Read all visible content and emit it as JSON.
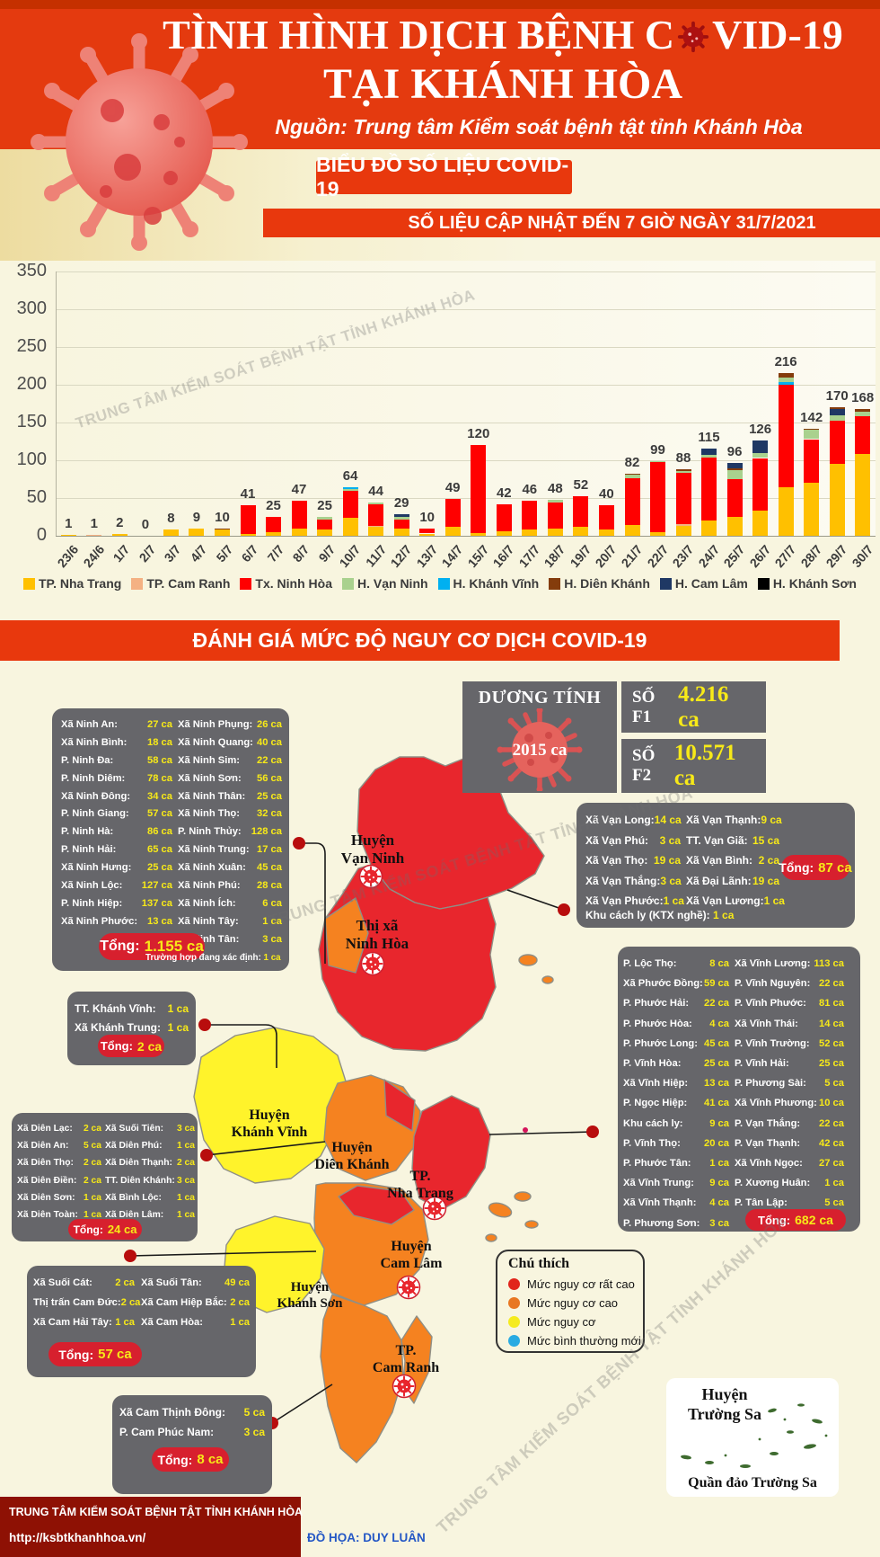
{
  "header": {
    "title_prefix": "TÌNH HÌNH DỊCH BỆNH C",
    "title_suffix": "VID-19",
    "title_line2": "TẠI KHÁNH HÒA",
    "source": "Nguồn: Trung tâm Kiểm soát bệnh tật tỉnh Khánh Hòa"
  },
  "watermark": "TRUNG TÂM KIỂM SOÁT BỆNH TẬT TỈNH KHÁNH HÒA",
  "labels": {
    "total": "Tổng:"
  },
  "chart_data": {
    "type": "bar",
    "stacked": true,
    "title": "BIỂU ĐỒ SỐ LIỆU COVID-19",
    "update_note": "SỐ LIỆU CẬP NHẬT ĐẾN 7 GIỜ NGÀY 31/7/2021",
    "ylim": [
      0,
      350
    ],
    "yticks": [
      0,
      50,
      100,
      150,
      200,
      250,
      300,
      350
    ],
    "legend": [
      {
        "key": "nt",
        "name": "TP. Nha Trang",
        "color": "#FFC000"
      },
      {
        "key": "cr",
        "name": "TP. Cam Ranh",
        "color": "#F4B183"
      },
      {
        "key": "nh",
        "name": "Tx. Ninh Hòa",
        "color": "#FF0000"
      },
      {
        "key": "vn",
        "name": "H. Vạn Ninh",
        "color": "#A9D18E"
      },
      {
        "key": "kv",
        "name": "H. Khánh Vĩnh",
        "color": "#00B0F0"
      },
      {
        "key": "dk",
        "name": "H. Diên Khánh",
        "color": "#843C0C"
      },
      {
        "key": "cl",
        "name": "H. Cam Lâm",
        "color": "#1F3864"
      },
      {
        "key": "ks",
        "name": "H. Khánh Sơn",
        "color": "#000000"
      }
    ],
    "bars": [
      {
        "date": "23/6",
        "total": 1,
        "segments": [
          [
            "nt",
            1
          ]
        ]
      },
      {
        "date": "24/6",
        "total": 1,
        "segments": [
          [
            "cr",
            1
          ]
        ]
      },
      {
        "date": "1/7",
        "total": 2,
        "segments": [
          [
            "nt",
            2
          ]
        ]
      },
      {
        "date": "2/7",
        "total": 0,
        "segments": []
      },
      {
        "date": "3/7",
        "total": 8,
        "segments": [
          [
            "nt",
            8
          ]
        ]
      },
      {
        "date": "4/7",
        "total": 9,
        "segments": [
          [
            "nt",
            9
          ]
        ]
      },
      {
        "date": "5/7",
        "total": 10,
        "segments": [
          [
            "nt",
            9
          ],
          [
            "dk",
            1
          ]
        ]
      },
      {
        "date": "6/7",
        "total": 41,
        "segments": [
          [
            "nt",
            2
          ],
          [
            "nh",
            39
          ]
        ]
      },
      {
        "date": "7/7",
        "total": 25,
        "segments": [
          [
            "nt",
            5
          ],
          [
            "nh",
            20
          ]
        ]
      },
      {
        "date": "8/7",
        "total": 47,
        "segments": [
          [
            "nt",
            9
          ],
          [
            "nh",
            38
          ]
        ]
      },
      {
        "date": "9/7",
        "total": 25,
        "segments": [
          [
            "nt",
            8
          ],
          [
            "nh",
            14
          ],
          [
            "vn",
            3
          ]
        ]
      },
      {
        "date": "10/7",
        "total": 64,
        "segments": [
          [
            "nt",
            24
          ],
          [
            "nh",
            36
          ],
          [
            "vn",
            2
          ],
          [
            "kv",
            2
          ]
        ]
      },
      {
        "date": "11/7",
        "total": 44,
        "segments": [
          [
            "nt",
            12
          ],
          [
            "cr",
            1
          ],
          [
            "nh",
            29
          ],
          [
            "vn",
            2
          ]
        ]
      },
      {
        "date": "12/7",
        "total": 29,
        "segments": [
          [
            "nt",
            9
          ],
          [
            "nh",
            13
          ],
          [
            "vn",
            3
          ],
          [
            "cl",
            4
          ]
        ]
      },
      {
        "date": "13/7",
        "total": 10,
        "segments": [
          [
            "nt",
            3
          ],
          [
            "nh",
            7
          ]
        ]
      },
      {
        "date": "14/7",
        "total": 49,
        "segments": [
          [
            "nt",
            12
          ],
          [
            "nh",
            37
          ]
        ]
      },
      {
        "date": "15/7",
        "total": 120,
        "segments": [
          [
            "nt",
            4
          ],
          [
            "nh",
            116
          ]
        ]
      },
      {
        "date": "16/7",
        "total": 42,
        "segments": [
          [
            "nt",
            6
          ],
          [
            "nh",
            36
          ]
        ]
      },
      {
        "date": "17/7",
        "total": 46,
        "segments": [
          [
            "nt",
            8
          ],
          [
            "nh",
            38
          ]
        ]
      },
      {
        "date": "18/7",
        "total": 48,
        "segments": [
          [
            "nt",
            10
          ],
          [
            "nh",
            34
          ],
          [
            "vn",
            4
          ]
        ]
      },
      {
        "date": "19/7",
        "total": 52,
        "segments": [
          [
            "nt",
            12
          ],
          [
            "nh",
            40
          ]
        ]
      },
      {
        "date": "20/7",
        "total": 40,
        "segments": [
          [
            "nt",
            8
          ],
          [
            "nh",
            32
          ]
        ]
      },
      {
        "date": "21/7",
        "total": 82,
        "segments": [
          [
            "nt",
            14
          ],
          [
            "nh",
            62
          ],
          [
            "vn",
            5
          ],
          [
            "dk",
            1
          ]
        ]
      },
      {
        "date": "22/7",
        "total": 99,
        "segments": [
          [
            "nt",
            5
          ],
          [
            "nh",
            93
          ],
          [
            "vn",
            1
          ]
        ]
      },
      {
        "date": "23/7",
        "total": 88,
        "segments": [
          [
            "nt",
            13
          ],
          [
            "cr",
            2
          ],
          [
            "nh",
            68
          ],
          [
            "vn",
            3
          ],
          [
            "dk",
            2
          ]
        ]
      },
      {
        "date": "24/7",
        "total": 115,
        "segments": [
          [
            "nt",
            20
          ],
          [
            "nh",
            84
          ],
          [
            "vn",
            3
          ],
          [
            "cl",
            8
          ]
        ]
      },
      {
        "date": "25/7",
        "total": 96,
        "segments": [
          [
            "nt",
            25
          ],
          [
            "nh",
            50
          ],
          [
            "vn",
            12
          ],
          [
            "dk",
            2
          ],
          [
            "cl",
            7
          ]
        ]
      },
      {
        "date": "26/7",
        "total": 126,
        "segments": [
          [
            "nt",
            33
          ],
          [
            "nh",
            70
          ],
          [
            "vn",
            6
          ],
          [
            "cl",
            17
          ]
        ]
      },
      {
        "date": "27/7",
        "total": 216,
        "segments": [
          [
            "nt",
            64
          ],
          [
            "nh",
            136
          ],
          [
            "kv",
            4
          ],
          [
            "vn",
            6
          ],
          [
            "dk",
            6
          ]
        ]
      },
      {
        "date": "28/7",
        "total": 142,
        "segments": [
          [
            "nt",
            70
          ],
          [
            "nh",
            58
          ],
          [
            "vn",
            12
          ],
          [
            "dk",
            2
          ]
        ]
      },
      {
        "date": "29/7",
        "total": 170,
        "segments": [
          [
            "nt",
            95
          ],
          [
            "nh",
            57
          ],
          [
            "vn",
            8
          ],
          [
            "cl",
            8
          ],
          [
            "dk",
            2
          ]
        ]
      },
      {
        "date": "30/7",
        "total": 168,
        "segments": [
          [
            "nt",
            108
          ],
          [
            "nh",
            50
          ],
          [
            "vn",
            6
          ],
          [
            "dk",
            4
          ]
        ]
      }
    ]
  },
  "risk_banner": "ĐÁNH GIÁ MỨC ĐỘ NGUY CƠ DỊCH COVID-19",
  "stats": {
    "duong_tinh_label": "DƯƠNG TÍNH",
    "duong_tinh_value": "2015 ca",
    "f1_label": "SỐ F1",
    "f1_value": "4.216 ca",
    "f2_label": "SỐ F2",
    "f2_value": "10.571 ca"
  },
  "boxes": {
    "ninh_hoa": {
      "left": [
        [
          "Xã Ninh An:",
          "27 ca"
        ],
        [
          "Xã Ninh Bình:",
          "18 ca"
        ],
        [
          "P. Ninh Đa:",
          "58 ca"
        ],
        [
          "P. Ninh Diêm:",
          "78 ca"
        ],
        [
          "Xã Ninh Đông:",
          "34 ca"
        ],
        [
          "P. Ninh Giang:",
          "57 ca"
        ],
        [
          "P. Ninh Hà:",
          "86 ca"
        ],
        [
          "P. Ninh Hải:",
          "65 ca"
        ],
        [
          "Xã Ninh Hưng:",
          "25 ca"
        ],
        [
          "Xã Ninh Lộc:",
          "127 ca"
        ],
        [
          "P. Ninh Hiệp:",
          "137 ca"
        ],
        [
          "Xã Ninh Phước:",
          "13 ca"
        ]
      ],
      "right": [
        [
          "Xã Ninh Phụng:",
          "26 ca"
        ],
        [
          "Xã Ninh Quang:",
          "40 ca"
        ],
        [
          "Xã Ninh Sim:",
          "22 ca"
        ],
        [
          "Xã Ninh Sơn:",
          "56 ca"
        ],
        [
          "Xã Ninh Thân:",
          "25 ca"
        ],
        [
          "Xã Ninh Thọ:",
          "32 ca"
        ],
        [
          "P. Ninh Thủy:",
          "128 ca"
        ],
        [
          "Xã Ninh Trung:",
          "17 ca"
        ],
        [
          "Xã Ninh Xuân:",
          "45 ca"
        ],
        [
          "Xã Ninh Phú:",
          "28 ca"
        ],
        [
          "Xã Ninh Ích:",
          "6 ca"
        ],
        [
          "Xã Ninh Tây:",
          "1 ca"
        ],
        [
          "Xã Ninh Tân:",
          "3 ca"
        ]
      ],
      "total_value": "1.155 ca",
      "note": [
        "Trường hợp đang xác định:",
        "1 ca"
      ]
    },
    "van_ninh": {
      "left": [
        [
          "Xã Vạn Long:",
          "14 ca"
        ],
        [
          "Xã Vạn Phú:",
          "3 ca"
        ],
        [
          "Xã Vạn Thọ:",
          "19 ca"
        ],
        [
          "Xã Vạn Thắng:",
          "3 ca"
        ],
        [
          "Xã Vạn Phước:",
          "1 ca"
        ]
      ],
      "right": [
        [
          "Xã Vạn Thạnh:",
          "9 ca"
        ],
        [
          "TT. Vạn Giã:",
          "15 ca"
        ],
        [
          "Xã Vạn Bình:",
          "2 ca"
        ],
        [
          "Xã Đại Lãnh:",
          "19 ca"
        ],
        [
          "Xã Vạn Lương:",
          "1 ca"
        ]
      ],
      "extra": [
        "Khu cách ly (KTX nghề):",
        "1 ca"
      ],
      "total_value": "87 ca"
    },
    "nha_trang": {
      "left": [
        [
          "P. Lộc Thọ:",
          "8 ca"
        ],
        [
          "Xã Phước Đồng:",
          "59 ca"
        ],
        [
          "P. Phước Hải:",
          "22 ca"
        ],
        [
          "P. Phước Hòa:",
          "4 ca"
        ],
        [
          "P. Phước Long:",
          "45 ca"
        ],
        [
          "P. Vĩnh Hòa:",
          "25 ca"
        ],
        [
          "Xã Vĩnh Hiệp:",
          "13 ca"
        ],
        [
          "P. Ngọc Hiệp:",
          "41 ca"
        ],
        [
          "Khu cách ly:",
          "9 ca"
        ],
        [
          "P. Vĩnh Thọ:",
          "20 ca"
        ],
        [
          "P. Phước Tân:",
          "1 ca"
        ],
        [
          "Xã Vĩnh Trung:",
          "9 ca"
        ],
        [
          "Xã Vĩnh Thạnh:",
          "4 ca"
        ],
        [
          "P. Phương Sơn:",
          "3 ca"
        ]
      ],
      "right": [
        [
          "Xã Vĩnh Lương:",
          "113 ca"
        ],
        [
          "P. Vĩnh Nguyên:",
          "22 ca"
        ],
        [
          "P. Vĩnh Phước:",
          "81 ca"
        ],
        [
          "Xã Vĩnh Thái:",
          "14 ca"
        ],
        [
          "P. Vĩnh Trường:",
          "52 ca"
        ],
        [
          "P. Vĩnh Hải:",
          "25 ca"
        ],
        [
          "P. Phương Sài:",
          "5 ca"
        ],
        [
          "Xã Vĩnh Phương:",
          "10 ca"
        ],
        [
          "P. Vạn Thắng:",
          "22 ca"
        ],
        [
          "P. Vạn Thạnh:",
          "42 ca"
        ],
        [
          "Xã Vĩnh Ngọc:",
          "27 ca"
        ],
        [
          "P. Xương Huân:",
          "1 ca"
        ],
        [
          "P. Tân Lập:",
          "5 ca"
        ]
      ],
      "total_value": "682 ca"
    },
    "khanh_vinh": {
      "left": [
        [
          "TT. Khánh Vĩnh:",
          "1 ca"
        ],
        [
          "Xã Khánh Trung:",
          "1 ca"
        ]
      ],
      "total_value": "2 ca"
    },
    "dien_khanh": {
      "left": [
        [
          "Xã Diên Lạc:",
          "2 ca"
        ],
        [
          "Xã Diên An:",
          "5 ca"
        ],
        [
          "Xã Diên Thọ:",
          "2 ca"
        ],
        [
          "Xã Diên Điền:",
          "2 ca"
        ],
        [
          "Xã Diên Sơn:",
          "1 ca"
        ],
        [
          "Xã Diên Toàn:",
          "1 ca"
        ]
      ],
      "right": [
        [
          "Xã Suối Tiên:",
          "3 ca"
        ],
        [
          "Xã Diên Phú:",
          "1 ca"
        ],
        [
          "Xã Diên Thạnh:",
          "2 ca"
        ],
        [
          "TT. Diên Khánh:",
          "3 ca"
        ],
        [
          "Xã Bình Lộc:",
          "1 ca"
        ],
        [
          "Xã Diên Lâm:",
          "1 ca"
        ]
      ],
      "total_value": "24 ca"
    },
    "cam_lam": {
      "left": [
        [
          "Xã Suối Cát:",
          "2 ca"
        ],
        [
          "Thị trấn Cam Đức:",
          "2 ca"
        ],
        [
          "Xã Cam Hải Tây:",
          "1 ca"
        ]
      ],
      "right": [
        [
          "Xã Suối Tân:",
          "49 ca"
        ],
        [
          "Xã Cam Hiệp Bắc:",
          "2 ca"
        ],
        [
          "Xã Cam Hòa:",
          "1 ca"
        ]
      ],
      "total_value": "57 ca"
    },
    "cam_ranh": {
      "left": [
        [
          "Xã Cam Thịnh Đông:",
          "5 ca"
        ],
        [
          "P. Cam Phúc Nam:",
          "3 ca"
        ]
      ],
      "total_value": "8 ca"
    }
  },
  "map": {
    "labels": [
      [
        "Huyện",
        "Vạn Ninh"
      ],
      [
        "Thị xã",
        "Ninh Hòa"
      ],
      [
        "Huyện",
        "Khánh Vĩnh"
      ],
      [
        "Huyện",
        "Diên Khánh"
      ],
      [
        "TP.",
        "Nha Trang"
      ],
      [
        "Huyện",
        "Cam Lâm"
      ],
      [
        "Huyện",
        "Khánh Sơn"
      ],
      [
        "TP.",
        "Cam Ranh"
      ]
    ],
    "legend": {
      "title": "Chú thích",
      "items": [
        {
          "label": "Mức nguy cơ rất cao",
          "color": "#E1251B"
        },
        {
          "label": "Mức nguy cơ cao",
          "color": "#E87722"
        },
        {
          "label": "Mức nguy cơ",
          "color": "#F5EB1E"
        },
        {
          "label": "Mức bình thường mới",
          "color": "#29ABE2"
        }
      ]
    }
  },
  "truong_sa": {
    "line1": "Huyện",
    "line2": "Trường Sa",
    "caption": "Quần đảo Trường Sa"
  },
  "footer": {
    "org": "TRUNG TÂM KIỂM SOÁT BỆNH TẬT TỈNH KHÁNH HÒA",
    "url": "http://ksbtkhanhhoa.vn/",
    "credit": "ĐỒ HỌA: DUY LUÂN"
  }
}
